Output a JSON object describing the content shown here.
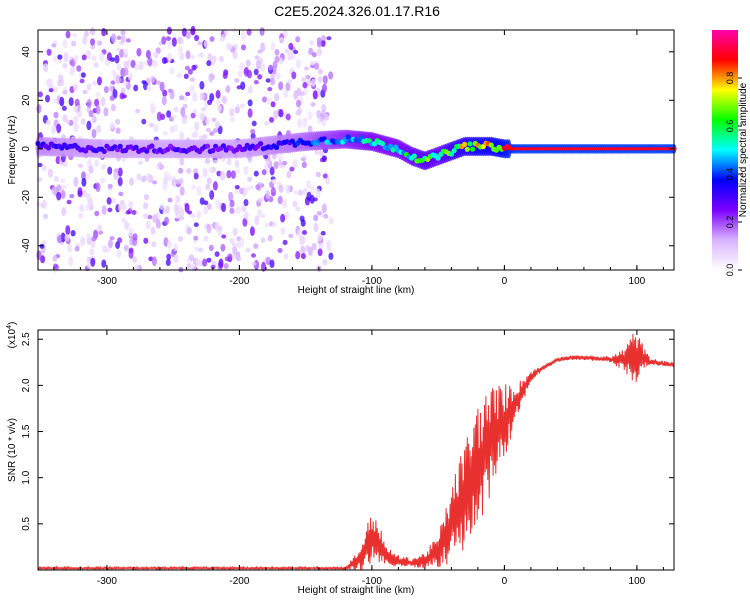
{
  "title": "C2E5.2024.326.01.17.R16",
  "chart_data": [
    {
      "type": "heatmap",
      "name": "spectrogram",
      "xlabel": "Height of straight line (km)",
      "ylabel": "Frequency (Hz)",
      "xlim": [
        -352,
        128
      ],
      "ylim": [
        -50,
        49
      ],
      "xticks": [
        -300,
        -200,
        -100,
        0,
        100
      ],
      "yticks": [
        -40,
        -20,
        0,
        20,
        40
      ],
      "colorbar": {
        "label": "Normalized spectral amplitude",
        "range": [
          0,
          1
        ],
        "ticks": [
          "0.0",
          "0.2",
          "0.4",
          "0.6",
          "0.8"
        ],
        "tick_values": [
          0,
          0.2,
          0.4,
          0.6,
          0.8
        ],
        "colors": [
          "#ffffff",
          "#d9b3ff",
          "#7b00ff",
          "#0000ff",
          "#00ffff",
          "#00ff00",
          "#ffff00",
          "#ff0000",
          "#ff00aa"
        ]
      },
      "ridge": {
        "description_points_km": [
          -352,
          -300,
          -250,
          -200,
          -150,
          -120,
          -100,
          -80,
          -70,
          -60,
          -50,
          -40,
          -30,
          -20,
          -10,
          0,
          10,
          128
        ],
        "frequency_hz": [
          1,
          0,
          0,
          0,
          3,
          4,
          3,
          0,
          -3,
          -5,
          -3,
          -1,
          1,
          1,
          1,
          0,
          0,
          0
        ],
        "amplitude": [
          0.35,
          0.3,
          0.3,
          0.3,
          0.4,
          0.5,
          0.55,
          0.55,
          0.6,
          0.65,
          0.6,
          0.7,
          0.75,
          0.8,
          0.8,
          0.85,
          0.9,
          0.9
        ]
      },
      "noise_region_km": [
        -352,
        -130
      ]
    },
    {
      "type": "line",
      "name": "snr",
      "xlabel": "Height of straight line (km)",
      "ylabel": "SNR (10 * v/v)",
      "y_multiplier": "(x10",
      "y_multiplier_exp": "4",
      "y_multiplier_close": ")",
      "xlim": [
        -352,
        128
      ],
      "ylim": [
        0,
        2.6
      ],
      "xticks": [
        -300,
        -200,
        -100,
        0,
        100
      ],
      "yticks": [
        0.5,
        1.0,
        1.5,
        2.0,
        2.5
      ],
      "ytick_labels": [
        "0.5",
        "1.0",
        "1.5",
        "2.0",
        "2.5"
      ],
      "color": "#e8312f",
      "envelope": {
        "x": [
          -352,
          -120,
          -110,
          -100,
          -95,
          -90,
          -80,
          -70,
          -60,
          -50,
          -45,
          -40,
          -30,
          -20,
          -10,
          0,
          10,
          20,
          30,
          40,
          50,
          60,
          80,
          90,
          95,
          100,
          105,
          110,
          128
        ],
        "mean": [
          0.02,
          0.02,
          0.1,
          0.35,
          0.3,
          0.15,
          0.1,
          0.08,
          0.1,
          0.2,
          0.35,
          0.5,
          0.8,
          1.1,
          1.4,
          1.6,
          1.85,
          2.1,
          2.2,
          2.28,
          2.3,
          2.3,
          2.28,
          2.28,
          2.3,
          2.32,
          2.3,
          2.26,
          2.22
        ],
        "amp": [
          0.01,
          0.01,
          0.1,
          0.25,
          0.2,
          0.1,
          0.05,
          0.04,
          0.08,
          0.15,
          0.25,
          0.35,
          0.5,
          0.6,
          0.5,
          0.35,
          0.15,
          0.05,
          0.02,
          0.02,
          0.02,
          0.02,
          0.03,
          0.1,
          0.2,
          0.25,
          0.1,
          0.03,
          0.02
        ]
      }
    }
  ]
}
